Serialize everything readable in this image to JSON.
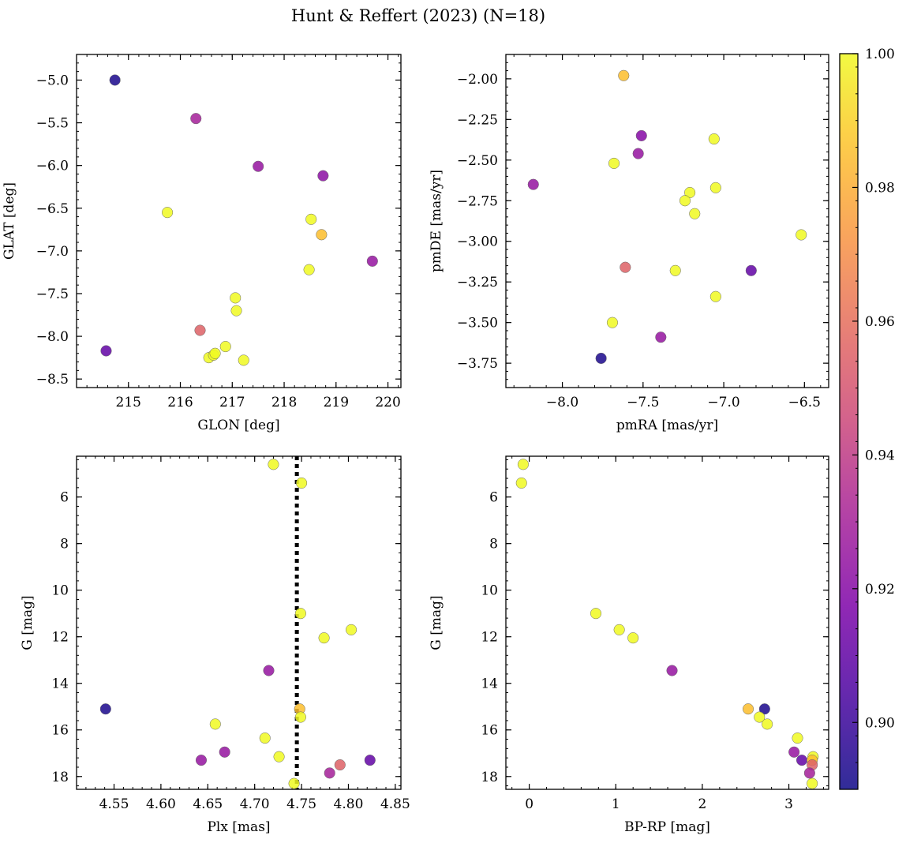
{
  "figure": {
    "title": "Hunt & Reffert (2023) (N=18)"
  },
  "colorbar": {
    "min": 0.89,
    "max": 1.0,
    "ticks": [
      0.9,
      0.92,
      0.94,
      0.96,
      0.98,
      1.0
    ],
    "tick_labels": [
      "0.90",
      "0.92",
      "0.94",
      "0.96",
      "0.98",
      "1.00"
    ],
    "colormap": "plasma"
  },
  "chart_data": [
    {
      "type": "scatter",
      "id": "glon-glat",
      "xlabel": "GLON [deg]",
      "ylabel": "GLAT [deg]",
      "xlim": [
        214.0,
        220.25
      ],
      "ylim": [
        -8.6,
        -4.7
      ],
      "y_inverted": false,
      "xticks": [
        215,
        216,
        217,
        218,
        219,
        220
      ],
      "xtick_labels": [
        "215",
        "216",
        "217",
        "218",
        "219",
        "220"
      ],
      "yticks": [
        -5.0,
        -5.5,
        -6.0,
        -6.5,
        -7.0,
        -7.5,
        -8.0,
        -8.5
      ],
      "ytick_labels": [
        "−5.0",
        "−5.5",
        "−6.0",
        "−6.5",
        "−7.0",
        "−7.5",
        "−8.0",
        "−8.5"
      ],
      "points": [
        {
          "x": 214.74,
          "y": -5.0,
          "c": 0.893
        },
        {
          "x": 214.57,
          "y": -8.17,
          "c": 0.91
        },
        {
          "x": 216.3,
          "y": -5.45,
          "c": 0.93
        },
        {
          "x": 217.5,
          "y": -6.01,
          "c": 0.925
        },
        {
          "x": 218.75,
          "y": -6.12,
          "c": 0.922
        },
        {
          "x": 219.7,
          "y": -7.12,
          "c": 0.925
        },
        {
          "x": 215.75,
          "y": -6.55,
          "c": 1.0
        },
        {
          "x": 218.52,
          "y": -6.63,
          "c": 1.0
        },
        {
          "x": 218.72,
          "y": -6.81,
          "c": 0.985
        },
        {
          "x": 218.48,
          "y": -7.22,
          "c": 1.0
        },
        {
          "x": 217.06,
          "y": -7.55,
          "c": 1.0
        },
        {
          "x": 217.08,
          "y": -7.7,
          "c": 1.0
        },
        {
          "x": 216.38,
          "y": -7.93,
          "c": 0.955
        },
        {
          "x": 216.87,
          "y": -8.12,
          "c": 1.0
        },
        {
          "x": 216.55,
          "y": -8.25,
          "c": 1.0
        },
        {
          "x": 216.64,
          "y": -8.22,
          "c": 1.0
        },
        {
          "x": 216.67,
          "y": -8.2,
          "c": 1.0
        },
        {
          "x": 217.22,
          "y": -8.28,
          "c": 1.0
        }
      ]
    },
    {
      "type": "scatter",
      "id": "pmra-pmde",
      "xlabel": "pmRA [mas/yr]",
      "ylabel": "pmDE [mas/yr]",
      "xlim": [
        -8.35,
        -6.35
      ],
      "ylim": [
        -3.9,
        -1.85
      ],
      "y_inverted": false,
      "xticks": [
        -8.0,
        -7.5,
        -7.0,
        -6.5
      ],
      "xtick_labels": [
        "−8.0",
        "−7.5",
        "−7.0",
        "−6.5"
      ],
      "yticks": [
        -2.0,
        -2.25,
        -2.5,
        -2.75,
        -3.0,
        -3.25,
        -3.5,
        -3.75
      ],
      "ytick_labels": [
        "−2.00",
        "−2.25",
        "−2.50",
        "−2.75",
        "−3.00",
        "−3.25",
        "−3.50",
        "−3.75"
      ],
      "points": [
        {
          "x": -7.62,
          "y": -1.98,
          "c": 0.985
        },
        {
          "x": -7.51,
          "y": -2.35,
          "c": 0.92
        },
        {
          "x": -7.53,
          "y": -2.46,
          "c": 0.925
        },
        {
          "x": -7.68,
          "y": -2.52,
          "c": 1.0
        },
        {
          "x": -7.06,
          "y": -2.37,
          "c": 1.0
        },
        {
          "x": -8.18,
          "y": -2.65,
          "c": 0.925
        },
        {
          "x": -7.21,
          "y": -2.7,
          "c": 1.0
        },
        {
          "x": -7.05,
          "y": -2.67,
          "c": 1.0
        },
        {
          "x": -7.24,
          "y": -2.75,
          "c": 1.0
        },
        {
          "x": -7.18,
          "y": -2.83,
          "c": 1.0
        },
        {
          "x": -6.52,
          "y": -2.96,
          "c": 1.0
        },
        {
          "x": -7.61,
          "y": -3.16,
          "c": 0.955
        },
        {
          "x": -7.3,
          "y": -3.18,
          "c": 1.0
        },
        {
          "x": -6.83,
          "y": -3.18,
          "c": 0.91
        },
        {
          "x": -7.05,
          "y": -3.34,
          "c": 1.0
        },
        {
          "x": -7.69,
          "y": -3.5,
          "c": 1.0
        },
        {
          "x": -7.39,
          "y": -3.59,
          "c": 0.925
        },
        {
          "x": -7.76,
          "y": -3.72,
          "c": 0.893
        }
      ]
    },
    {
      "type": "scatter",
      "id": "plx-g",
      "xlabel": "Plx [mas]",
      "ylabel": "G [mag]",
      "xlim": [
        4.51,
        4.856
      ],
      "ylim": [
        18.55,
        4.25
      ],
      "y_inverted": true,
      "xticks": [
        4.55,
        4.6,
        4.65,
        4.7,
        4.75,
        4.8,
        4.85
      ],
      "xtick_labels": [
        "4.55",
        "4.60",
        "4.65",
        "4.70",
        "4.75",
        "4.80",
        "4.85"
      ],
      "yticks": [
        6,
        8,
        10,
        12,
        14,
        16,
        18
      ],
      "ytick_labels": [
        "6",
        "8",
        "10",
        "12",
        "14",
        "16",
        "18"
      ],
      "vline": {
        "x": 4.745,
        "style": "dotted"
      },
      "points": [
        {
          "x": 4.72,
          "y": 4.6,
          "c": 1.0
        },
        {
          "x": 4.75,
          "y": 5.4,
          "c": 1.0
        },
        {
          "x": 4.749,
          "y": 11.0,
          "c": 1.0
        },
        {
          "x": 4.803,
          "y": 11.7,
          "c": 1.0
        },
        {
          "x": 4.774,
          "y": 12.05,
          "c": 1.0
        },
        {
          "x": 4.715,
          "y": 13.45,
          "c": 0.925
        },
        {
          "x": 4.541,
          "y": 15.1,
          "c": 0.893
        },
        {
          "x": 4.748,
          "y": 15.1,
          "c": 0.985
        },
        {
          "x": 4.749,
          "y": 15.45,
          "c": 1.0
        },
        {
          "x": 4.658,
          "y": 15.75,
          "c": 1.0
        },
        {
          "x": 4.711,
          "y": 16.35,
          "c": 1.0
        },
        {
          "x": 4.668,
          "y": 16.95,
          "c": 0.925
        },
        {
          "x": 4.726,
          "y": 17.15,
          "c": 1.0
        },
        {
          "x": 4.643,
          "y": 17.3,
          "c": 0.925
        },
        {
          "x": 4.823,
          "y": 17.3,
          "c": 0.91
        },
        {
          "x": 4.791,
          "y": 17.5,
          "c": 0.955
        },
        {
          "x": 4.78,
          "y": 17.85,
          "c": 0.93
        },
        {
          "x": 4.742,
          "y": 18.3,
          "c": 1.0
        }
      ]
    },
    {
      "type": "scatter",
      "id": "bprp-g",
      "xlabel": "BP-RP [mag]",
      "ylabel": "G [mag]",
      "xlim": [
        -0.27,
        3.46
      ],
      "ylim": [
        18.55,
        4.25
      ],
      "y_inverted": true,
      "xticks": [
        0,
        1,
        2,
        3
      ],
      "xtick_labels": [
        "0",
        "1",
        "2",
        "3"
      ],
      "yticks": [
        6,
        8,
        10,
        12,
        14,
        16,
        18
      ],
      "ytick_labels": [
        "6",
        "8",
        "10",
        "12",
        "14",
        "16",
        "18"
      ],
      "points": [
        {
          "x": -0.07,
          "y": 4.6,
          "c": 1.0
        },
        {
          "x": -0.09,
          "y": 5.4,
          "c": 1.0
        },
        {
          "x": 0.77,
          "y": 11.0,
          "c": 1.0
        },
        {
          "x": 1.04,
          "y": 11.7,
          "c": 1.0
        },
        {
          "x": 1.2,
          "y": 12.05,
          "c": 1.0
        },
        {
          "x": 1.65,
          "y": 13.45,
          "c": 0.925
        },
        {
          "x": 2.53,
          "y": 15.1,
          "c": 0.985
        },
        {
          "x": 2.72,
          "y": 15.1,
          "c": 0.893
        },
        {
          "x": 2.66,
          "y": 15.45,
          "c": 1.0
        },
        {
          "x": 2.75,
          "y": 15.75,
          "c": 1.0
        },
        {
          "x": 3.1,
          "y": 16.35,
          "c": 1.0
        },
        {
          "x": 3.06,
          "y": 16.95,
          "c": 0.925
        },
        {
          "x": 3.28,
          "y": 17.15,
          "c": 1.0
        },
        {
          "x": 3.15,
          "y": 17.3,
          "c": 0.91
        },
        {
          "x": 3.27,
          "y": 17.3,
          "c": 0.985
        },
        {
          "x": 3.27,
          "y": 17.5,
          "c": 0.955
        },
        {
          "x": 3.24,
          "y": 17.85,
          "c": 0.93
        },
        {
          "x": 3.27,
          "y": 18.3,
          "c": 1.0
        }
      ]
    }
  ]
}
